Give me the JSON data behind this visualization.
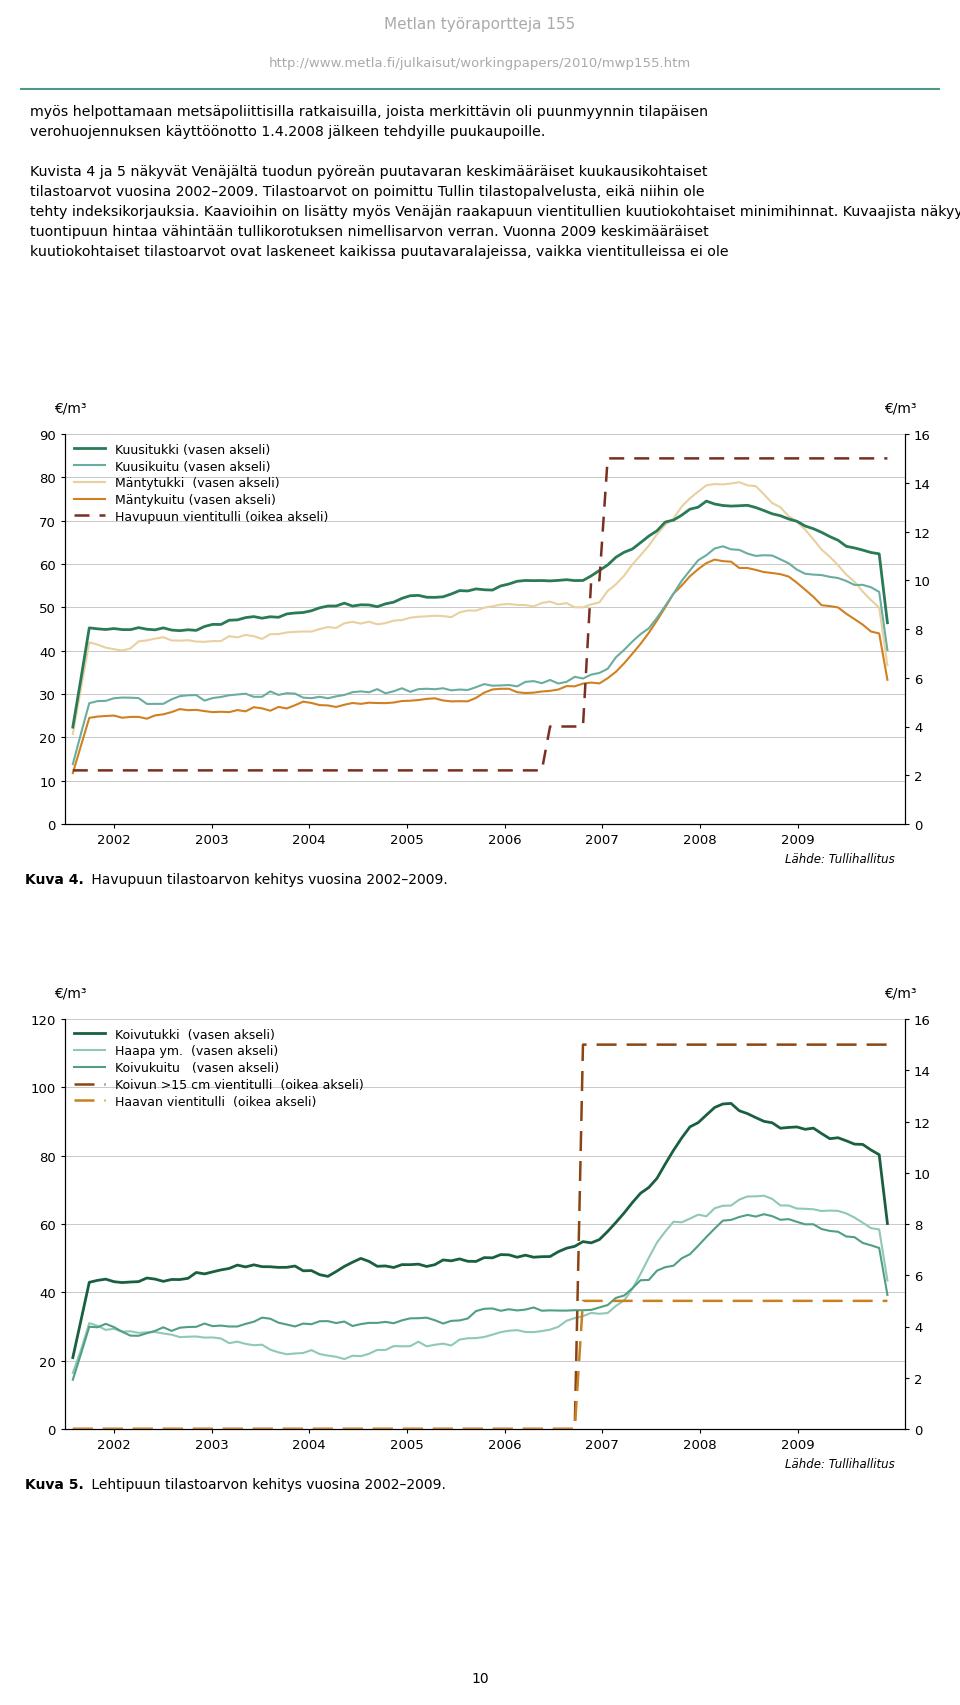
{
  "header_line1": "Metlan työraportteja 155",
  "header_line2": "http://www.metla.fi/julkaisut/workingpapers/2010/mwp155.htm",
  "header_color": "#aaaaaa",
  "divider_color": "#4a9a8a",
  "fig4_caption_bold": "Kuva 4.",
  "fig4_caption_rest": " Havupuun tilastoarvon kehitys vuosina 2002–2009.",
  "fig5_caption_bold": "Kuva 5.",
  "fig5_caption_rest": " Lehtipuun tilastoarvon kehitys vuosina 2002–2009.",
  "lahde_text": "Lähde: Tullihallitus",
  "page_number": "10",
  "body_line1": "myös helpottamaan metsäpoliittisilla ratkaisuilla, joista merkittävin oli puunmyynnin tilapäisen",
  "body_line2": "verohuojennuksen käyttöönotto 1.4.2008 jälkeen tehdyille puukaupoille.",
  "body_line3": "Kuvista 4 ja 5 näkyvät Venäjältä tuodun pyöreän puutavaran keskmääräiset kuukausikohtaiset",
  "body_line4": "tilastoarvot vuosina 2002–2009. Tilastoarvot on poimittu Tullin tilastopalvelusta, eikä niihin ole",
  "body_line5": "tehty indeksikorjauksia. Kaavioihin on lisätty myös Venäjän raakapuun vientitullien kuutiokohtaiset minimihinnat. Kuvaajista näkyy, että vientitullien korotukset ovat nostaneet välittömästi",
  "body_line6": "tuontipuun hintaa vähintään tullikorotuksen nimellisarvon verran. Vuonna 2009 keskmääräiset",
  "body_line7": "kuutiokohtaiset tilastoarvot ovat laskeneet kaikissa puutavaralajeissa, vaikka vientitulleissa ei ole",
  "chart1": {
    "ylim_left": [
      0,
      90
    ],
    "ylim_right": [
      0,
      16
    ],
    "yticks_left": [
      0,
      10,
      20,
      30,
      40,
      50,
      60,
      70,
      80,
      90
    ],
    "yticks_right": [
      0,
      2,
      4,
      6,
      8,
      10,
      12,
      14,
      16
    ],
    "legend": [
      {
        "label": "Kuusitukki (vasen akseli)",
        "color": "#2a7a56",
        "lw": 2.0,
        "ls": "-"
      },
      {
        "label": "Kuusikuitu (vasen akseli)",
        "color": "#6aada0",
        "lw": 1.5,
        "ls": "-"
      },
      {
        "label": "Mäntytukki  (vasen akseli)",
        "color": "#e8d0a0",
        "lw": 1.5,
        "ls": "-"
      },
      {
        "label": "Mäntykuitu (vasen akseli)",
        "color": "#d08020",
        "lw": 1.5,
        "ls": "-"
      },
      {
        "label": "Havupuun vientitulli (oikea akseli)",
        "color": "#7a3020",
        "lw": 1.8,
        "ls": "--"
      }
    ]
  },
  "chart2": {
    "ylim_left": [
      0,
      120
    ],
    "ylim_right": [
      0,
      16
    ],
    "yticks_left": [
      0,
      20,
      40,
      60,
      80,
      100,
      120
    ],
    "yticks_right": [
      0,
      2,
      4,
      6,
      8,
      10,
      12,
      14,
      16
    ],
    "legend": [
      {
        "label": "Koivutukki  (vasen akseli)",
        "color": "#1a6040",
        "lw": 2.0,
        "ls": "-"
      },
      {
        "label": "Haapa ym.  (vasen akseli)",
        "color": "#90c8b8",
        "lw": 1.5,
        "ls": "-"
      },
      {
        "label": "Koivukuitu   (vasen akseli)",
        "color": "#50a080",
        "lw": 1.5,
        "ls": "-"
      },
      {
        "label": "Koivun >15 cm vientitulli  (oikea akseli)",
        "color": "#8b4513",
        "lw": 1.8,
        "ls": "--"
      },
      {
        "label": "Haavan vientitulli  (oikea akseli)",
        "color": "#c88020",
        "lw": 1.8,
        "ls": "--"
      }
    ]
  }
}
